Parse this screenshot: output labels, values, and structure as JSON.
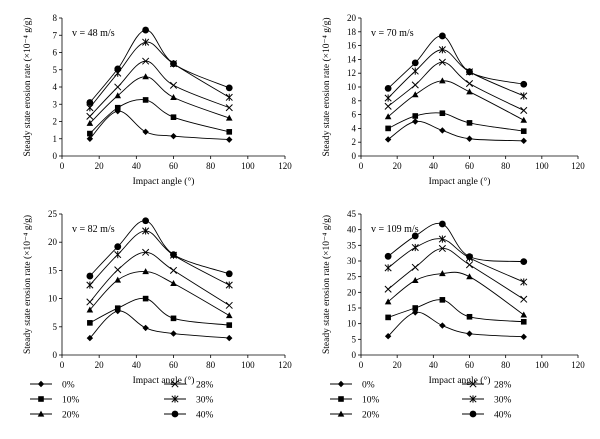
{
  "legend_entries": [
    "0%",
    "10%",
    "20%",
    "28%",
    "30%",
    "40%"
  ],
  "chart_data": [
    {
      "type": "line",
      "title": "",
      "annotation": "v = 48 m/s",
      "xlabel": "Impact angle (°)",
      "ylabel": "Steady state erosion rate (×10⁻⁴ g/g)",
      "xlim": [
        0,
        120
      ],
      "ylim": [
        0,
        8
      ],
      "xticks": [
        0,
        20,
        40,
        60,
        80,
        100,
        120
      ],
      "yticks": [
        0,
        1,
        2,
        3,
        4,
        5,
        6,
        7,
        8
      ],
      "grid": false,
      "x": [
        15,
        30,
        45,
        60,
        90
      ],
      "series": [
        {
          "name": "0%",
          "marker": "diamond",
          "values": [
            1.0,
            2.6,
            1.4,
            1.15,
            0.95
          ]
        },
        {
          "name": "10%",
          "marker": "square",
          "values": [
            1.3,
            2.8,
            3.25,
            2.25,
            1.4
          ]
        },
        {
          "name": "20%",
          "marker": "triangle",
          "values": [
            1.9,
            3.5,
            4.6,
            3.4,
            2.2
          ]
        },
        {
          "name": "28%",
          "marker": "x",
          "values": [
            2.3,
            4.0,
            5.5,
            4.1,
            2.8
          ]
        },
        {
          "name": "30%",
          "marker": "star",
          "values": [
            2.8,
            4.8,
            6.6,
            5.35,
            3.4
          ]
        },
        {
          "name": "40%",
          "marker": "circle",
          "values": [
            3.1,
            5.05,
            7.3,
            5.35,
            3.95
          ]
        }
      ]
    },
    {
      "type": "line",
      "title": "",
      "annotation": "v = 70 m/s",
      "xlabel": "Impact angle (°)",
      "ylabel": "Steady state erosion rate (×10⁻⁴ g/g)",
      "xlim": [
        0,
        120
      ],
      "ylim": [
        0,
        20
      ],
      "xticks": [
        0,
        20,
        40,
        60,
        80,
        100,
        120
      ],
      "yticks": [
        0,
        2,
        4,
        6,
        8,
        10,
        12,
        14,
        16,
        18,
        20
      ],
      "grid": false,
      "x": [
        15,
        30,
        45,
        60,
        90
      ],
      "series": [
        {
          "name": "0%",
          "marker": "diamond",
          "values": [
            2.4,
            5.0,
            3.7,
            2.5,
            2.2
          ]
        },
        {
          "name": "10%",
          "marker": "square",
          "values": [
            4.0,
            5.8,
            6.2,
            4.8,
            3.6
          ]
        },
        {
          "name": "20%",
          "marker": "triangle",
          "values": [
            5.7,
            8.9,
            10.9,
            9.3,
            5.2
          ]
        },
        {
          "name": "28%",
          "marker": "x",
          "values": [
            7.2,
            10.3,
            13.6,
            10.5,
            6.6
          ]
        },
        {
          "name": "30%",
          "marker": "star",
          "values": [
            8.4,
            12.3,
            15.4,
            12.2,
            8.7
          ]
        },
        {
          "name": "40%",
          "marker": "circle",
          "values": [
            9.8,
            13.5,
            17.4,
            12.2,
            10.4
          ]
        }
      ]
    },
    {
      "type": "line",
      "title": "",
      "annotation": "v = 82 m/s",
      "xlabel": "Impact angle (°)",
      "ylabel": "Steady state erosion rate (×10⁻⁴ g/g)",
      "xlim": [
        0,
        120
      ],
      "ylim": [
        0,
        25
      ],
      "xticks": [
        0,
        20,
        40,
        60,
        80,
        100,
        120
      ],
      "yticks": [
        0,
        5,
        10,
        15,
        20,
        25
      ],
      "grid": false,
      "x": [
        15,
        30,
        45,
        60,
        90
      ],
      "series": [
        {
          "name": "0%",
          "marker": "diamond",
          "values": [
            3.0,
            7.8,
            4.8,
            3.8,
            3.0
          ]
        },
        {
          "name": "10%",
          "marker": "square",
          "values": [
            5.7,
            8.3,
            10.0,
            6.5,
            5.3
          ]
        },
        {
          "name": "20%",
          "marker": "triangle",
          "values": [
            8.0,
            13.3,
            14.8,
            12.7,
            7.0
          ]
        },
        {
          "name": "28%",
          "marker": "x",
          "values": [
            9.4,
            15.1,
            18.2,
            15.0,
            8.8
          ]
        },
        {
          "name": "30%",
          "marker": "star",
          "values": [
            12.4,
            17.8,
            22.0,
            17.7,
            12.4
          ]
        },
        {
          "name": "40%",
          "marker": "circle",
          "values": [
            14.0,
            19.2,
            23.8,
            17.8,
            14.4
          ]
        }
      ]
    },
    {
      "type": "line",
      "title": "",
      "annotation": "v = 109 m/s",
      "xlabel": "Impact angle (°)",
      "ylabel": "Steady state erosion rate (×10⁻⁴ g/g)",
      "xlim": [
        0,
        120
      ],
      "ylim": [
        0,
        45
      ],
      "xticks": [
        0,
        20,
        40,
        60,
        80,
        100,
        120
      ],
      "yticks": [
        0,
        5,
        10,
        15,
        20,
        25,
        30,
        35,
        40,
        45
      ],
      "grid": false,
      "x": [
        15,
        30,
        45,
        60,
        90
      ],
      "series": [
        {
          "name": "0%",
          "marker": "diamond",
          "values": [
            6.0,
            13.6,
            9.4,
            6.8,
            5.8
          ]
        },
        {
          "name": "10%",
          "marker": "square",
          "values": [
            12.0,
            15.0,
            17.6,
            12.2,
            10.6
          ]
        },
        {
          "name": "20%",
          "marker": "triangle",
          "values": [
            17.0,
            23.8,
            26.0,
            25.0,
            12.8
          ]
        },
        {
          "name": "28%",
          "marker": "x",
          "values": [
            21.0,
            28.0,
            34.0,
            28.8,
            17.8
          ]
        },
        {
          "name": "30%",
          "marker": "star",
          "values": [
            27.8,
            34.3,
            37.0,
            31.0,
            23.3
          ]
        },
        {
          "name": "40%",
          "marker": "circle",
          "values": [
            31.5,
            38.0,
            41.8,
            31.4,
            29.8
          ]
        }
      ]
    }
  ]
}
